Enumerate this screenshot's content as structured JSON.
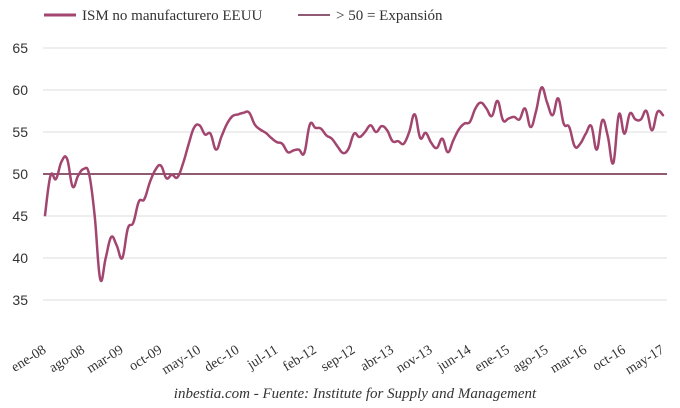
{
  "chart_data": {
    "type": "line",
    "title": "",
    "xlabel": "",
    "ylabel": "",
    "ylim": [
      35,
      65
    ],
    "yticks": [
      35,
      40,
      45,
      50,
      55,
      60,
      65
    ],
    "grid": true,
    "legend_position": "top",
    "x_start": "ene-08",
    "x_end": "may-17",
    "x_tick_every": 7,
    "x_tick_labels": [
      "ene-08",
      "ago-08",
      "mar-09",
      "oct-09",
      "may-10",
      "dec-10",
      "jul-11",
      "feb-12",
      "sep-12",
      "abr-13",
      "nov-13",
      "jun-14",
      "ene-15",
      "ago-15",
      "mar-16",
      "oct-16",
      "may-17"
    ],
    "series": [
      {
        "name": "ISM no manufacturero EEUU",
        "color": "#a2466f",
        "values": [
          45.1,
          49.8,
          49.4,
          51.5,
          51.8,
          48.5,
          49.8,
          50.6,
          50,
          45,
          37.5,
          40,
          42.5,
          41.5,
          40,
          43.5,
          44.2,
          46.7,
          47,
          49,
          50.5,
          51,
          49.5,
          49.9,
          49.6,
          51.2,
          53.5,
          55.5,
          55.8,
          54.7,
          54.8,
          52.9,
          54.5,
          56,
          56.9,
          57.1,
          57.3,
          57.3,
          55.9,
          55.3,
          54.9,
          54.3,
          53.8,
          53.6,
          52.6,
          52.8,
          52.9,
          52.5,
          55.9,
          55.5,
          55.4,
          54.6,
          54.2,
          53.3,
          52.5,
          53,
          54.8,
          54.4,
          55,
          55.8,
          55,
          55.7,
          55.2,
          53.9,
          53.9,
          53.6,
          55,
          57.1,
          54.3,
          54.9,
          53.7,
          53.1,
          54.2,
          52.6,
          54,
          55.3,
          56,
          56.2,
          57.8,
          58.5,
          57.8,
          56.9,
          58.7,
          56.4,
          56.6,
          56.8,
          56.5,
          57.8,
          55.6,
          57.5,
          60.3,
          58.5,
          57,
          59,
          56,
          55.6,
          53.3,
          53.6,
          54.8,
          55.7,
          52.9,
          56.4,
          54.5,
          51.3,
          57.1,
          54.8,
          57.2,
          56.5,
          56.5,
          57.5,
          55.2,
          57.4,
          57
        ]
      },
      {
        "name": "> 50 = Expansión",
        "color": "#6b2343",
        "constant": 50
      }
    ],
    "footer": "inbestia.com - Fuente: Institute for Supply and Management"
  }
}
